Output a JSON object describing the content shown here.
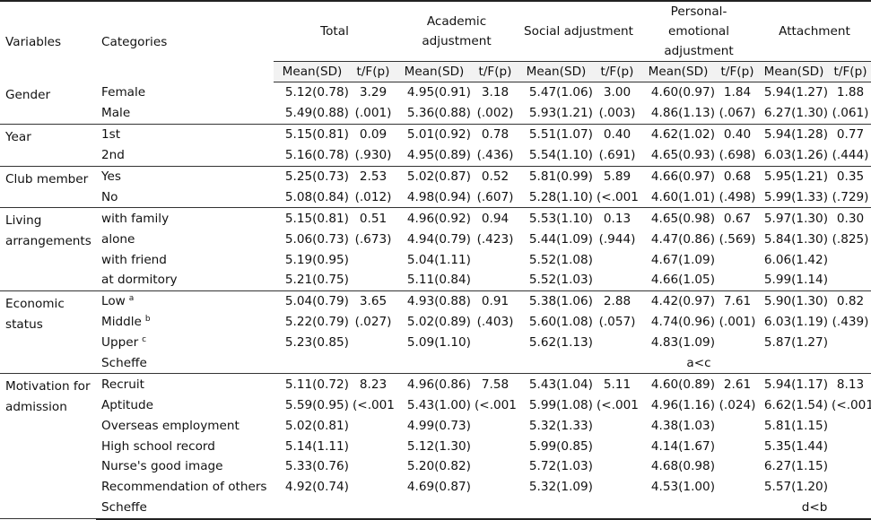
{
  "header": {
    "variables": "Variables",
    "categories": "Categories",
    "groups": [
      {
        "label": "Total"
      },
      {
        "label": "Academic adjustment"
      },
      {
        "label": "Social adjustment"
      },
      {
        "label": "Personal-emotional adjustment"
      },
      {
        "label": "Attachment"
      }
    ],
    "mean_sd": "Mean(SD)",
    "tfp": "t/F(p)"
  },
  "sections": [
    {
      "variable": "Gender",
      "rows": [
        {
          "category": "Female",
          "cells": [
            "5.12(0.78)",
            "3.29",
            "4.95(0.91)",
            "3.18",
            "5.47(1.06)",
            "3.00",
            "4.60(0.97)",
            "1.84",
            "5.94(1.27)",
            "1.88"
          ]
        },
        {
          "category": "Male",
          "cells": [
            "5.49(0.88)",
            "(.001)",
            "5.36(0.88)",
            "(.002)",
            "5.93(1.21)",
            "(.003)",
            "4.86(1.13)",
            "(.067)",
            "6.27(1.30)",
            "(.061)"
          ]
        }
      ]
    },
    {
      "variable": "Year",
      "rows": [
        {
          "category": "1st",
          "cells": [
            "5.15(0.81)",
            "0.09",
            "5.01(0.92)",
            "0.78",
            "5.51(1.07)",
            "0.40",
            "4.62(1.02)",
            "0.40",
            "5.94(1.28)",
            "0.77"
          ]
        },
        {
          "category": "2nd",
          "cells": [
            "5.16(0.78)",
            "(.930)",
            "4.95(0.89)",
            "(.436)",
            "5.54(1.10)",
            "(.691)",
            "4.65(0.93)",
            "(.698)",
            "6.03(1.26)",
            "(.444)"
          ]
        }
      ]
    },
    {
      "variable": "Club member",
      "rows": [
        {
          "category": "Yes",
          "cells": [
            "5.25(0.73)",
            "2.53",
            "5.02(0.87)",
            "0.52",
            "5.81(0.99)",
            "5.89",
            "4.66(0.97)",
            "0.68",
            "5.95(1.21)",
            "0.35"
          ]
        },
        {
          "category": "No",
          "cells": [
            "5.08(0.84)",
            "(.012)",
            "4.98(0.94)",
            "(.607)",
            "5.28(1.10)",
            "(<.001)",
            "4.60(1.01)",
            "(.498)",
            "5.99(1.33)",
            "(.729)"
          ]
        }
      ]
    },
    {
      "variable": "Living arrangements",
      "rows": [
        {
          "category": "with family",
          "cells": [
            "5.15(0.81)",
            "0.51",
            "4.96(0.92)",
            "0.94",
            "5.53(1.10)",
            "0.13",
            "4.65(0.98)",
            "0.67",
            "5.97(1.30)",
            "0.30"
          ]
        },
        {
          "category": "alone",
          "cells": [
            "5.06(0.73)",
            "(.673)",
            "4.94(0.79)",
            "(.423)",
            "5.44(1.09)",
            "(.944)",
            "4.47(0.86)",
            "(.569)",
            "5.84(1.30)",
            "(.825)"
          ]
        },
        {
          "category": "with friend",
          "cells": [
            "5.19(0.95)",
            "",
            "5.04(1.11)",
            "",
            "5.52(1.08)",
            "",
            "4.67(1.09)",
            "",
            "6.06(1.42)",
            ""
          ]
        },
        {
          "category": "at dormitory",
          "cells": [
            "5.21(0.75)",
            "",
            "5.11(0.84)",
            "",
            "5.52(1.03)",
            "",
            "4.66(1.05)",
            "",
            "5.99(1.14)",
            ""
          ]
        }
      ]
    },
    {
      "variable": "Economic status",
      "rows": [
        {
          "category": "Low",
          "sup": "a",
          "cells": [
            "5.04(0.79)",
            "3.65",
            "4.93(0.88)",
            "0.91",
            "5.38(1.06)",
            "2.88",
            "4.42(0.97)",
            "7.61",
            "5.90(1.30)",
            "0.82"
          ]
        },
        {
          "category": "Middle",
          "sup": "b",
          "cells": [
            "5.22(0.79)",
            "(.027)",
            "5.02(0.89)",
            "(.403)",
            "5.60(1.08)",
            "(.057)",
            "4.74(0.96)",
            "(.001)",
            "6.03(1.19)",
            "(.439)"
          ]
        },
        {
          "category": "Upper",
          "sup": "c",
          "cells": [
            "5.23(0.85)",
            "",
            "5.09(1.10)",
            "",
            "5.62(1.13)",
            "",
            "4.83(1.09)",
            "",
            "5.87(1.27)",
            ""
          ]
        }
      ],
      "scheffe": {
        "label": "Scheffe",
        "value": "a<c",
        "column": 3
      }
    },
    {
      "variable": "Motivation for admission",
      "rows": [
        {
          "category": "Recruit",
          "cells": [
            "5.11(0.72)",
            "8.23",
            "4.96(0.86)",
            "7.58",
            "5.43(1.04)",
            "5.11",
            "4.60(0.89)",
            "2.61",
            "5.94(1.17)",
            "8.13"
          ]
        },
        {
          "category": "Aptitude",
          "cells": [
            "5.59(0.95)",
            "(<.001)",
            "5.43(1.00)",
            "(<.001)",
            "5.99(1.08)",
            "(<.001)",
            "4.96(1.16)",
            "(.024)",
            "6.62(1.54)",
            "(<.001)"
          ]
        },
        {
          "category": "Overseas employment",
          "cells": [
            "5.02(0.81)",
            "",
            "4.99(0.73)",
            "",
            "5.32(1.33)",
            "",
            "4.38(1.03)",
            "",
            "5.81(1.15)",
            ""
          ]
        },
        {
          "category": "High school record",
          "cells": [
            "5.14(1.11)",
            "",
            "5.12(1.30)",
            "",
            "5.99(0.85)",
            "",
            "4.14(1.67)",
            "",
            "5.35(1.44)",
            ""
          ]
        },
        {
          "category": "Nurse's good image",
          "cells": [
            "5.33(0.76)",
            "",
            "5.20(0.82)",
            "",
            "5.72(1.03)",
            "",
            "4.68(0.98)",
            "",
            "6.27(1.15)",
            ""
          ]
        },
        {
          "category": "Recommendation of others",
          "cells": [
            "4.92(0.74)",
            "",
            "4.69(0.87)",
            "",
            "5.32(1.09)",
            "",
            "4.53(1.00)",
            "",
            "5.57(1.20)",
            ""
          ]
        }
      ],
      "scheffe": {
        "label": "Scheffe",
        "value": "d<b",
        "column": 4
      }
    }
  ]
}
